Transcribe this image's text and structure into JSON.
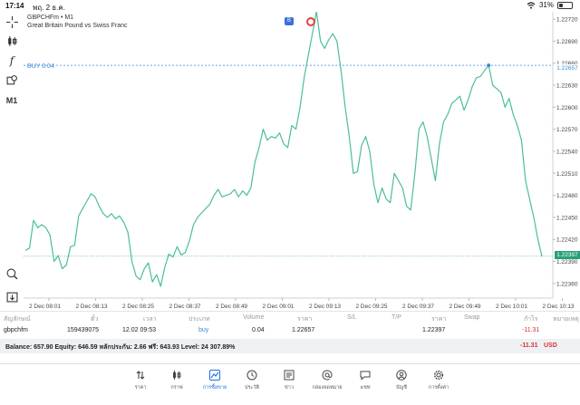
{
  "status": {
    "time": "17:14",
    "date": "พฤ. 2 ธ.ค.",
    "battery": "31%",
    "battery_level": 0.31
  },
  "toolbar": {
    "items": [
      {
        "name": "crosshair-icon",
        "label": ""
      },
      {
        "name": "candles-icon",
        "label": ""
      },
      {
        "name": "function-icon",
        "label": "f"
      },
      {
        "name": "objects-icon",
        "label": ""
      },
      {
        "name": "timeframe-button",
        "label": "M1"
      },
      {
        "name": "zoom-icon",
        "label": ""
      },
      {
        "name": "export-icon",
        "label": ""
      }
    ]
  },
  "chart": {
    "symbol": "GBPCHFm • M1",
    "description": "Great Britain Pound vs Swiss Franc",
    "buy_label": "BUY 0.04",
    "buy_price": "1.22657",
    "current_price": "1.22397",
    "marker_blue": "B",
    "colors": {
      "line": "#4bbf95",
      "buy": "#3a8bd8",
      "current": "#26a07b",
      "grid": "#eeeeee"
    }
  },
  "chart_data": {
    "type": "line",
    "title": "",
    "xlabel": "",
    "ylabel": "",
    "ylim": [
      1.2234,
      1.2273
    ],
    "y_ticks": [
      "1.22720",
      "1.22690",
      "1.22660",
      "1.22630",
      "1.22600",
      "1.22570",
      "1.22540",
      "1.22510",
      "1.22480",
      "1.22450",
      "1.22420",
      "1.22390",
      "1.22360"
    ],
    "x_ticks": [
      "2 Dec 08:01",
      "2 Dec 08:13",
      "2 Dec 08:25",
      "2 Dec 08:37",
      "2 Dec 08:49",
      "2 Dec 09:01",
      "2 Dec 09:13",
      "2 Dec 09:25",
      "2 Dec 09:37",
      "2 Dec 09:49",
      "2 Dec 10:01",
      "2 Dec 10:13"
    ],
    "series": [
      {
        "values": [
          1.22405,
          1.22408,
          1.22446,
          1.22436,
          1.2244,
          1.22436,
          1.22426,
          1.2239,
          1.22398,
          1.2238,
          1.22385,
          1.2241,
          1.22412,
          1.22452,
          1.22462,
          1.22472,
          1.22482,
          1.22478,
          1.22465,
          1.22455,
          1.2245,
          1.22455,
          1.22448,
          1.22452,
          1.22443,
          1.2243,
          1.2239,
          1.2237,
          1.22365,
          1.2238,
          1.22388,
          1.22362,
          1.22372,
          1.22356,
          1.22382,
          1.224,
          1.22396,
          1.2241,
          1.22399,
          1.22402,
          1.22418,
          1.2244,
          1.2245,
          1.22456,
          1.22462,
          1.22468,
          1.2248,
          1.22488,
          1.22478,
          1.2248,
          1.22482,
          1.22488,
          1.22478,
          1.22486,
          1.2248,
          1.2249,
          1.22525,
          1.22545,
          1.2257,
          1.22555,
          1.2256,
          1.22558,
          1.22565,
          1.2255,
          1.22545,
          1.22575,
          1.2257,
          1.226,
          1.2264,
          1.2267,
          1.227,
          1.2273,
          1.2269,
          1.2268,
          1.22692,
          1.227,
          1.2269,
          1.2265,
          1.226,
          1.2256,
          1.2251,
          1.22512,
          1.22548,
          1.2256,
          1.2254,
          1.22495,
          1.2247,
          1.2249,
          1.22475,
          1.2247,
          1.2251,
          1.225,
          1.2249,
          1.22465,
          1.2246,
          1.2251,
          1.2257,
          1.2258,
          1.2256,
          1.2253,
          1.225,
          1.2255,
          1.2258,
          1.2259,
          1.22605,
          1.2261,
          1.22615,
          1.22596,
          1.2261,
          1.22628,
          1.2264,
          1.22642,
          1.2265,
          1.22657,
          1.2263,
          1.22625,
          1.2262,
          1.226,
          1.22612,
          1.2259,
          1.22575,
          1.22555,
          1.225,
          1.22475,
          1.2245,
          1.2242,
          1.22397
        ]
      }
    ]
  },
  "trades": {
    "headers": [
      "สัญลักษณ์",
      "ตั๋ว",
      "เวลา",
      "ประเภท",
      "Volume",
      "ราคา",
      "S/L",
      "T/P",
      "ราคา",
      "Swap",
      "กำไร",
      "หมายเหตุ"
    ],
    "rows": [
      {
        "symbol": "gbpchfm",
        "ticket": "159439075",
        "time": "12.02 09:53",
        "type": "buy",
        "volume": "0.04",
        "open_price": "1.22657",
        "sl": "",
        "tp": "",
        "price": "1.22397",
        "swap": "",
        "profit": "-11.31",
        "comment": ""
      }
    ]
  },
  "balance": {
    "text": "Balance: 657.90 Equity: 646.59 หลักประกัน: 2.66 ฟรี: 643.93 Level: 24 307.89%",
    "profit": "-11.31",
    "currency": "USD"
  },
  "tabs": [
    {
      "name": "tab-quotes",
      "label": "ราคา",
      "icon": "arrows-icon",
      "active": false
    },
    {
      "name": "tab-chart",
      "label": "กราฟ",
      "icon": "candles-icon",
      "active": false
    },
    {
      "name": "tab-trade",
      "label": "การซื้อขาย",
      "icon": "trend-icon",
      "active": true
    },
    {
      "name": "tab-history",
      "label": "ประวัติ",
      "icon": "history-icon",
      "active": false
    },
    {
      "name": "tab-news",
      "label": "ข่าว",
      "icon": "news-icon",
      "active": false
    },
    {
      "name": "tab-mailbox",
      "label": "กล่องจดหมาย",
      "icon": "at-icon",
      "active": false
    },
    {
      "name": "tab-chat",
      "label": "แชท",
      "icon": "chat-icon",
      "active": false
    },
    {
      "name": "tab-accounts",
      "label": "บัญชี",
      "icon": "person-icon",
      "active": false
    },
    {
      "name": "tab-settings",
      "label": "การตั้งค่า",
      "icon": "gear-icon",
      "active": false
    }
  ]
}
